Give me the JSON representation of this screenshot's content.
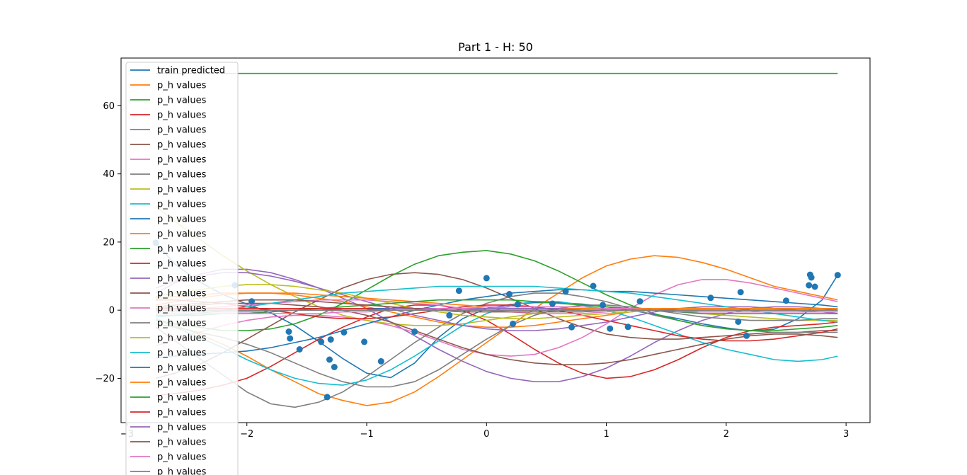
{
  "chart_data": {
    "type": "line",
    "title": "Part 1 - H: 50",
    "xlabel": "",
    "ylabel": "",
    "xlim": [
      -3.05,
      3.2
    ],
    "ylim": [
      -33,
      74
    ],
    "grid": false,
    "legend_location": "upper left",
    "x_ticks": [
      -3,
      -2,
      -1,
      0,
      1,
      2,
      3
    ],
    "y_ticks": [
      -20,
      0,
      20,
      40,
      60
    ],
    "x_tick_labels": [
      "−3",
      "−2",
      "−1",
      "0",
      "1",
      "2",
      "3"
    ],
    "y_tick_labels": [
      "−20",
      "0",
      "20",
      "40",
      "60"
    ],
    "legend_entries": [
      "train predicted",
      "p_h values",
      "p_h values",
      "p_h values",
      "p_h values",
      "p_h values",
      "p_h values",
      "p_h values",
      "p_h values",
      "p_h values",
      "p_h values",
      "p_h values",
      "p_h values",
      "p_h values",
      "p_h values",
      "p_h values",
      "p_h values",
      "p_h values",
      "p_h values",
      "p_h values",
      "p_h values",
      "p_h values",
      "p_h values",
      "p_h values",
      "p_h values",
      "p_h values",
      "p_h values",
      "p_h values"
    ],
    "scatter_points": {
      "x": [
        -2.76,
        -2.1,
        -1.96,
        -1.65,
        -1.64,
        -1.56,
        -1.38,
        -1.33,
        -1.31,
        -1.3,
        -1.27,
        -1.19,
        -1.02,
        -0.88,
        -0.6,
        -0.31,
        -0.23,
        0.0,
        0.19,
        0.22,
        0.26,
        0.55,
        0.66,
        0.71,
        0.89,
        0.97,
        1.03,
        1.18,
        1.28,
        1.87,
        2.1,
        2.12,
        2.17,
        2.5,
        2.69,
        2.7,
        2.71,
        2.74,
        2.93
      ],
      "y": [
        19.8,
        7.3,
        2.6,
        -6.3,
        -8.3,
        -11.5,
        -9.3,
        -25.5,
        -14.5,
        -8.6,
        -16.7,
        -6.5,
        -9.3,
        -15.0,
        -6.3,
        -1.5,
        5.7,
        9.4,
        4.7,
        -4.0,
        1.7,
        1.9,
        5.5,
        -5.0,
        7.1,
        1.5,
        -5.4,
        -4.9,
        2.6,
        3.6,
        -3.4,
        5.3,
        -7.5,
        2.8,
        7.3,
        10.4,
        9.6,
        6.9,
        10.3
      ]
    },
    "x": [
      -2.76,
      -2.6,
      -2.4,
      -2.2,
      -2.0,
      -1.8,
      -1.6,
      -1.4,
      -1.2,
      -1.0,
      -0.8,
      -0.6,
      -0.4,
      -0.2,
      0.0,
      0.2,
      0.4,
      0.6,
      0.8,
      1.0,
      1.2,
      1.4,
      1.6,
      1.8,
      2.0,
      2.2,
      2.4,
      2.6,
      2.8,
      2.93
    ],
    "series": [
      {
        "name": "train predicted",
        "color": "#1f77b4",
        "values": [
          19.8,
          13.5,
          8.4,
          4.6,
          1.8,
          -0.8,
          -4.5,
          -9.2,
          -14.2,
          -18.5,
          -19.8,
          -15.5,
          -8.0,
          -2.5,
          0.5,
          1.7,
          2.2,
          2.2,
          1.8,
          1.0,
          0.0,
          -1.2,
          -2.5,
          -4.0,
          -5.2,
          -6.1,
          -5.6,
          -2.5,
          3.0,
          10.3
        ]
      },
      {
        "name": "p_h values",
        "color": "#ff7f0e",
        "values": [
          -2.5,
          -4.5,
          -7.0,
          -10.0,
          -13.5,
          -17.5,
          -21.0,
          -24.5,
          -26.5,
          -28.0,
          -27.0,
          -24.0,
          -19.5,
          -14.5,
          -9.5,
          -4.5,
          0.5,
          5.0,
          9.5,
          13.0,
          15.0,
          16.0,
          15.5,
          14.0,
          12.0,
          9.5,
          7.0,
          5.5,
          4.0,
          3.0
        ]
      },
      {
        "name": "p_h values",
        "color": "#2ca02c",
        "values": [
          69.5,
          69.5,
          69.5,
          69.5,
          69.5,
          69.5,
          69.5,
          69.5,
          69.5,
          69.5,
          69.5,
          69.5,
          69.5,
          69.5,
          69.5,
          69.5,
          69.5,
          69.5,
          69.5,
          69.5,
          69.5,
          69.5,
          69.5,
          69.5,
          69.5,
          69.5,
          69.5,
          69.5,
          69.5,
          69.5
        ]
      },
      {
        "name": "p_h values",
        "color": "#d62728",
        "values": [
          -25.0,
          -24.5,
          -23.5,
          -22.0,
          -20.0,
          -16.5,
          -12.5,
          -8.5,
          -5.0,
          -2.0,
          0.5,
          1.5,
          1.5,
          0.0,
          -3.0,
          -7.0,
          -11.5,
          -15.5,
          -18.5,
          -20.0,
          -19.5,
          -17.5,
          -14.5,
          -11.0,
          -8.0,
          -6.0,
          -5.0,
          -4.5,
          -4.0,
          -3.5
        ]
      },
      {
        "name": "p_h values",
        "color": "#9467bd",
        "values": [
          5.0,
          8.0,
          10.5,
          12.0,
          12.0,
          11.0,
          9.0,
          6.5,
          3.5,
          0.5,
          -3.5,
          -7.5,
          -11.5,
          -15.0,
          -18.0,
          -20.0,
          -21.0,
          -21.0,
          -19.5,
          -17.0,
          -13.5,
          -9.5,
          -6.0,
          -3.0,
          -1.0,
          0.5,
          1.0,
          1.0,
          0.5,
          0.0
        ]
      },
      {
        "name": "p_h values",
        "color": "#8c564b",
        "values": [
          -20.0,
          -18.5,
          -16.0,
          -12.5,
          -8.5,
          -4.5,
          -0.5,
          3.0,
          6.5,
          9.0,
          10.5,
          11.0,
          10.5,
          9.0,
          6.5,
          3.5,
          0.5,
          -2.5,
          -5.0,
          -7.0,
          -8.0,
          -8.5,
          -8.5,
          -8.0,
          -7.5,
          -7.0,
          -6.5,
          -6.5,
          -6.0,
          -6.0
        ]
      },
      {
        "name": "p_h values",
        "color": "#e377c2",
        "values": [
          -10.5,
          -8.5,
          -6.5,
          -4.5,
          -3.0,
          -2.0,
          -1.5,
          -1.5,
          -2.0,
          -3.0,
          -4.5,
          -6.5,
          -9.0,
          -11.5,
          -13.0,
          -13.5,
          -13.0,
          -11.0,
          -8.0,
          -4.0,
          0.5,
          4.5,
          7.5,
          9.0,
          9.0,
          8.0,
          6.5,
          5.0,
          3.5,
          2.5
        ]
      },
      {
        "name": "p_h values",
        "color": "#7f7f7f",
        "values": [
          -5.0,
          -9.0,
          -14.0,
          -19.0,
          -24.0,
          -27.5,
          -28.5,
          -27.0,
          -24.0,
          -19.5,
          -14.5,
          -9.5,
          -5.0,
          -1.0,
          2.0,
          4.0,
          5.0,
          5.0,
          4.0,
          2.5,
          0.5,
          -1.5,
          -3.0,
          -4.5,
          -5.5,
          -6.0,
          -6.5,
          -6.5,
          -6.5,
          -6.5
        ]
      },
      {
        "name": "p_h values",
        "color": "#bcbd22",
        "values": [
          30.5,
          26.0,
          21.0,
          16.0,
          11.5,
          7.5,
          4.0,
          1.0,
          -1.5,
          -3.0,
          -4.0,
          -4.5,
          -4.5,
          -4.0,
          -3.0,
          -2.0,
          -1.0,
          0.0,
          0.5,
          0.5,
          0.5,
          0.0,
          -0.5,
          -1.0,
          -1.5,
          -2.0,
          -2.5,
          -3.0,
          -3.0,
          -3.0
        ]
      },
      {
        "name": "p_h values",
        "color": "#17becf",
        "values": [
          -2.5,
          -5.0,
          -8.0,
          -11.0,
          -14.5,
          -17.5,
          -20.0,
          -21.5,
          -22.0,
          -20.5,
          -17.5,
          -13.5,
          -9.0,
          -4.5,
          -1.0,
          1.5,
          2.5,
          2.5,
          1.5,
          0.0,
          -2.0,
          -4.5,
          -7.0,
          -9.5,
          -11.5,
          -13.0,
          -14.5,
          -15.0,
          -14.5,
          -13.5
        ]
      },
      {
        "name": "p_h values",
        "color": "#1f77b4",
        "values": [
          -14.0,
          -13.5,
          -13.0,
          -12.5,
          -12.0,
          -11.0,
          -9.5,
          -8.0,
          -6.0,
          -4.0,
          -2.0,
          0.0,
          1.5,
          3.0,
          4.0,
          5.0,
          5.5,
          6.0,
          6.0,
          5.5,
          5.5,
          5.0,
          4.5,
          4.0,
          3.5,
          3.0,
          2.5,
          2.0,
          1.5,
          1.0
        ]
      },
      {
        "name": "p_h values",
        "color": "#ff7f0e",
        "values": [
          1.5,
          2.5,
          3.5,
          4.5,
          5.0,
          5.0,
          4.5,
          3.5,
          2.5,
          1.0,
          -0.5,
          -2.0,
          -3.5,
          -4.5,
          -5.0,
          -5.0,
          -4.5,
          -3.5,
          -2.5,
          -1.5,
          -0.5,
          0.0,
          0.5,
          0.5,
          0.5,
          0.5,
          0.5,
          0.5,
          0.5,
          0.5
        ]
      },
      {
        "name": "p_h values",
        "color": "#2ca02c",
        "values": [
          -3.0,
          -4.0,
          -5.0,
          -6.0,
          -6.0,
          -5.5,
          -4.0,
          -1.5,
          2.0,
          6.0,
          10.0,
          13.5,
          16.0,
          17.0,
          17.5,
          16.5,
          14.5,
          11.5,
          8.0,
          4.5,
          1.5,
          -1.0,
          -3.0,
          -4.5,
          -5.5,
          -6.0,
          -6.0,
          -5.5,
          -5.0,
          -4.5
        ]
      },
      {
        "name": "p_h values",
        "color": "#d62728",
        "values": [
          3.0,
          3.0,
          2.5,
          2.0,
          1.0,
          0.0,
          -1.0,
          -2.0,
          -2.5,
          -2.5,
          -2.0,
          -1.0,
          0.0,
          1.0,
          1.5,
          1.5,
          1.0,
          0.0,
          -1.5,
          -3.0,
          -4.5,
          -6.0,
          -7.5,
          -8.5,
          -9.0,
          -9.0,
          -8.5,
          -7.5,
          -6.5,
          -5.5
        ]
      },
      {
        "name": "p_h values",
        "color": "#9467bd",
        "values": [
          6.5,
          8.5,
          10.0,
          11.0,
          11.0,
          10.0,
          8.5,
          6.5,
          4.5,
          2.5,
          0.5,
          -1.5,
          -3.0,
          -4.5,
          -5.5,
          -6.0,
          -6.0,
          -5.5,
          -4.5,
          -3.5,
          -2.0,
          -0.5,
          0.5,
          1.0,
          1.0,
          1.0,
          0.5,
          0.0,
          -0.5,
          -1.0
        ]
      },
      {
        "name": "p_h values",
        "color": "#8c564b",
        "values": [
          0.5,
          1.0,
          1.5,
          2.0,
          2.0,
          2.0,
          1.5,
          1.0,
          0.0,
          -1.5,
          -3.5,
          -6.0,
          -8.5,
          -11.0,
          -13.0,
          -14.5,
          -15.5,
          -16.0,
          -16.0,
          -15.5,
          -14.5,
          -13.0,
          -11.5,
          -10.0,
          -8.5,
          -7.5,
          -7.0,
          -7.0,
          -7.5,
          -8.0
        ]
      },
      {
        "name": "p_h values",
        "color": "#e377c2",
        "values": [
          0.0,
          0.0,
          0.5,
          1.0,
          1.5,
          2.0,
          2.5,
          3.0,
          3.0,
          3.0,
          2.5,
          2.0,
          1.5,
          0.5,
          0.0,
          -0.5,
          -1.0,
          -1.0,
          -1.0,
          -0.5,
          0.0,
          0.0,
          0.0,
          -0.5,
          -0.5,
          -0.5,
          -0.5,
          -0.5,
          -0.5,
          -0.5
        ]
      },
      {
        "name": "p_h values",
        "color": "#7f7f7f",
        "values": [
          -4.0,
          -5.0,
          -6.5,
          -8.0,
          -10.0,
          -12.5,
          -15.5,
          -18.5,
          -21.0,
          -22.5,
          -22.5,
          -21.0,
          -17.5,
          -13.0,
          -8.5,
          -4.5,
          -1.5,
          0.5,
          1.5,
          1.5,
          1.0,
          0.0,
          -1.0,
          -2.0,
          -2.5,
          -3.0,
          -3.0,
          -3.0,
          -2.5,
          -2.5
        ]
      },
      {
        "name": "p_h values",
        "color": "#bcbd22",
        "values": [
          4.0,
          5.0,
          6.0,
          7.0,
          7.5,
          7.5,
          7.0,
          6.0,
          5.0,
          3.5,
          2.0,
          0.5,
          -0.5,
          -1.5,
          -2.0,
          -2.5,
          -2.5,
          -2.0,
          -1.5,
          -1.0,
          -0.5,
          0.0,
          0.0,
          0.0,
          0.0,
          0.0,
          0.0,
          0.0,
          0.0,
          0.0
        ]
      },
      {
        "name": "p_h values",
        "color": "#17becf",
        "values": [
          -2.0,
          -1.5,
          -1.0,
          0.0,
          1.0,
          2.0,
          3.0,
          4.0,
          5.0,
          5.5,
          6.0,
          6.5,
          7.0,
          7.0,
          7.0,
          7.0,
          7.0,
          6.5,
          6.0,
          5.5,
          5.0,
          4.0,
          3.0,
          2.0,
          1.0,
          0.0,
          -1.0,
          -2.0,
          -3.0,
          -3.5
        ]
      },
      {
        "name": "p_h values",
        "color": "#1f77b4",
        "values": [
          0.0,
          0.0,
          0.0,
          0.0,
          0.0,
          0.0,
          0.0,
          0.0,
          0.5,
          0.5,
          0.5,
          0.5,
          0.5,
          0.5,
          0.5,
          0.5,
          0.5,
          0.5,
          0.5,
          0.5,
          0.5,
          0.5,
          0.5,
          0.5,
          0.5,
          0.5,
          0.5,
          0.5,
          0.5,
          0.5
        ]
      },
      {
        "name": "p_h values",
        "color": "#ff7f0e",
        "values": [
          3.5,
          4.0,
          4.5,
          5.0,
          5.0,
          5.0,
          5.0,
          4.5,
          4.0,
          3.5,
          3.0,
          2.5,
          2.0,
          1.5,
          1.0,
          0.5,
          0.5,
          0.5,
          0.5,
          0.5,
          0.5,
          0.5,
          0.5,
          0.5,
          0.5,
          0.5,
          0.5,
          0.5,
          0.5,
          0.5
        ]
      },
      {
        "name": "p_h values",
        "color": "#2ca02c",
        "values": [
          -1.5,
          -1.5,
          -1.5,
          -1.0,
          -1.0,
          -0.5,
          0.0,
          0.5,
          1.0,
          1.5,
          2.0,
          2.5,
          3.0,
          3.0,
          3.0,
          3.0,
          2.5,
          2.0,
          1.5,
          1.0,
          0.5,
          0.0,
          -0.5,
          -1.0,
          -1.0,
          -1.0,
          -1.0,
          -1.0,
          -1.0,
          -1.0
        ]
      },
      {
        "name": "p_h values",
        "color": "#d62728",
        "values": [
          0.5,
          0.5,
          0.5,
          0.5,
          0.5,
          0.5,
          0.5,
          0.5,
          0.5,
          0.5,
          0.0,
          0.0,
          0.0,
          0.0,
          0.0,
          0.0,
          0.0,
          0.0,
          0.0,
          0.0,
          0.0,
          0.0,
          0.0,
          0.0,
          0.0,
          0.0,
          0.0,
          0.0,
          0.0,
          0.0
        ]
      },
      {
        "name": "p_h values",
        "color": "#9467bd",
        "values": [
          -0.5,
          -0.5,
          -0.5,
          -0.5,
          -0.5,
          -0.5,
          0.0,
          0.0,
          0.0,
          0.0,
          0.5,
          0.5,
          0.5,
          0.5,
          0.5,
          0.5,
          0.5,
          0.5,
          0.0,
          0.0,
          0.0,
          0.0,
          -0.5,
          -0.5,
          -0.5,
          -0.5,
          -0.5,
          -0.5,
          -0.5,
          -0.5
        ]
      },
      {
        "name": "p_h values",
        "color": "#8c564b",
        "values": [
          1.0,
          1.5,
          2.0,
          2.5,
          3.0,
          3.0,
          3.0,
          2.5,
          2.0,
          1.5,
          1.0,
          0.5,
          0.0,
          -0.5,
          -0.5,
          -0.5,
          -0.5,
          -0.5,
          -0.5,
          0.0,
          0.0,
          0.0,
          0.0,
          0.0,
          0.0,
          0.0,
          0.0,
          0.0,
          0.0,
          0.0
        ]
      },
      {
        "name": "p_h values",
        "color": "#e377c2",
        "values": [
          -1.0,
          -1.0,
          -1.0,
          -1.0,
          -1.0,
          -1.0,
          -1.0,
          -1.0,
          -0.5,
          -0.5,
          0.0,
          0.0,
          0.5,
          0.5,
          1.0,
          1.0,
          1.0,
          1.0,
          1.0,
          0.5,
          0.5,
          0.0,
          0.0,
          -0.5,
          -0.5,
          -0.5,
          -0.5,
          -0.5,
          -0.5,
          -0.5
        ]
      },
      {
        "name": "p_h values",
        "color": "#7f7f7f",
        "values": [
          0.0,
          0.0,
          0.0,
          0.0,
          0.0,
          0.0,
          0.0,
          0.0,
          0.0,
          0.0,
          0.0,
          0.0,
          0.0,
          0.0,
          0.0,
          0.0,
          0.0,
          0.0,
          0.0,
          0.0,
          0.0,
          0.0,
          0.0,
          0.0,
          0.0,
          0.0,
          0.0,
          0.0,
          0.0,
          0.0
        ]
      }
    ]
  }
}
